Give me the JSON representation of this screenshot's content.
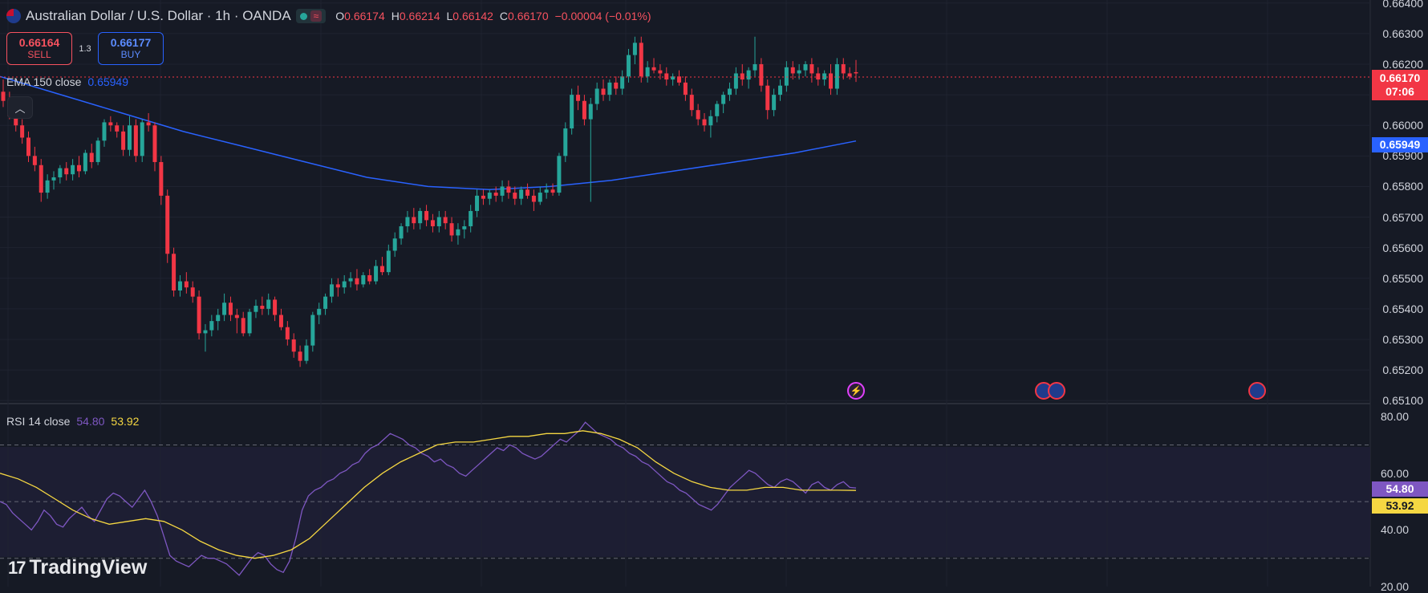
{
  "header": {
    "symbol_title": "Australian Dollar / U.S. Dollar · 1h · OANDA",
    "status_icon": "market-open-dot",
    "wave_icon": "≈",
    "ohlc": [
      {
        "key": "O",
        "value": "0.66174"
      },
      {
        "key": "H",
        "value": "0.66214"
      },
      {
        "key": "L",
        "value": "0.66142"
      },
      {
        "key": "C",
        "value": "0.66170"
      }
    ],
    "change": "−0.00004 (−0.01%)"
  },
  "trade": {
    "sell_price": "0.66164",
    "sell_label": "SELL",
    "spread": "1.3",
    "buy_price": "0.66177",
    "buy_label": "BUY"
  },
  "indicators": {
    "ema_label": "EMA 150 close",
    "ema_value": "0.65949",
    "rsi_label": "RSI 14 close",
    "rsi_value": "54.80",
    "rsi_ma_value": "53.92"
  },
  "price_axis": {
    "ticks": [
      "0.66400",
      "0.66300",
      "0.66200",
      "0.66100",
      "0.66000",
      "0.65900",
      "0.65800",
      "0.65700",
      "0.65600",
      "0.65500",
      "0.65400",
      "0.65300",
      "0.65200",
      "0.65100"
    ],
    "last_price": "0.66170",
    "countdown": "07:06",
    "ema_tag": "0.65949"
  },
  "rsi_axis": {
    "ticks": [
      "80.00",
      "60.00",
      "40.00",
      "20.00"
    ],
    "rsi_tag": "54.80",
    "ma_tag": "53.92"
  },
  "colors": {
    "bull": "#26a69a",
    "bear": "#f23645",
    "ema": "#2962ff",
    "rsi": "#7e57c2",
    "rsi_ma": "#f5d742",
    "background": "#161a25"
  },
  "events": [
    {
      "icon": "lightning-event-icon",
      "glyph": "⚡"
    },
    {
      "icon": "us-flag-event-icon",
      "glyph": ""
    },
    {
      "icon": "us-flag-event-icon",
      "glyph": ""
    },
    {
      "icon": "au-flag-event-icon",
      "glyph": ""
    }
  ],
  "brand": {
    "logo_mark": "17",
    "logo_text": "TradingView"
  },
  "chart_data": [
    {
      "type": "candlestick",
      "title": "Australian Dollar / U.S. Dollar · 1h · OANDA",
      "ylim": [
        0.6509,
        0.6641
      ],
      "candles": [
        [
          0.6611,
          0.6615,
          0.6606,
          0.6608
        ],
        [
          0.6608,
          0.6611,
          0.6602,
          0.6603
        ],
        [
          0.6603,
          0.6607,
          0.6598,
          0.66
        ],
        [
          0.66,
          0.6602,
          0.6594,
          0.6596
        ],
        [
          0.6596,
          0.6598,
          0.6588,
          0.659
        ],
        [
          0.659,
          0.6593,
          0.6585,
          0.6587
        ],
        [
          0.6587,
          0.6589,
          0.6575,
          0.6578
        ],
        [
          0.6578,
          0.6584,
          0.6576,
          0.6582
        ],
        [
          0.6582,
          0.6585,
          0.6579,
          0.6583
        ],
        [
          0.6583,
          0.6587,
          0.6581,
          0.6586
        ],
        [
          0.6586,
          0.6588,
          0.6582,
          0.6584
        ],
        [
          0.6584,
          0.6589,
          0.6582,
          0.6587
        ],
        [
          0.6587,
          0.659,
          0.6583,
          0.6585
        ],
        [
          0.6585,
          0.6592,
          0.6584,
          0.6591
        ],
        [
          0.6591,
          0.6594,
          0.6586,
          0.6588
        ],
        [
          0.6588,
          0.6596,
          0.6587,
          0.6595
        ],
        [
          0.6595,
          0.6602,
          0.6593,
          0.6601
        ],
        [
          0.6601,
          0.6603,
          0.6598,
          0.66
        ],
        [
          0.66,
          0.6601,
          0.6596,
          0.6598
        ],
        [
          0.6598,
          0.66,
          0.659,
          0.6592
        ],
        [
          0.6592,
          0.6603,
          0.659,
          0.66
        ],
        [
          0.66,
          0.6602,
          0.6588,
          0.659
        ],
        [
          0.659,
          0.6602,
          0.6588,
          0.6601
        ],
        [
          0.6601,
          0.6604,
          0.6598,
          0.66
        ],
        [
          0.66,
          0.6601,
          0.6585,
          0.6588
        ],
        [
          0.6588,
          0.659,
          0.6574,
          0.6577
        ],
        [
          0.6577,
          0.6579,
          0.6555,
          0.6558
        ],
        [
          0.6558,
          0.656,
          0.6544,
          0.6546
        ],
        [
          0.6546,
          0.6551,
          0.6544,
          0.6549
        ],
        [
          0.6549,
          0.6552,
          0.6545,
          0.6547
        ],
        [
          0.6547,
          0.6549,
          0.6542,
          0.6544
        ],
        [
          0.6544,
          0.6546,
          0.653,
          0.6532
        ],
        [
          0.6532,
          0.6535,
          0.6526,
          0.6533
        ],
        [
          0.6533,
          0.6538,
          0.6531,
          0.6536
        ],
        [
          0.6536,
          0.654,
          0.6533,
          0.6538
        ],
        [
          0.6538,
          0.6545,
          0.6536,
          0.6542
        ],
        [
          0.6542,
          0.6544,
          0.6536,
          0.6538
        ],
        [
          0.6538,
          0.654,
          0.6532,
          0.6537
        ],
        [
          0.6537,
          0.6539,
          0.6531,
          0.6532
        ],
        [
          0.6532,
          0.654,
          0.6531,
          0.6539
        ],
        [
          0.6539,
          0.6543,
          0.6537,
          0.6541
        ],
        [
          0.6541,
          0.6544,
          0.6538,
          0.654
        ],
        [
          0.654,
          0.6545,
          0.6538,
          0.6543
        ],
        [
          0.6543,
          0.6544,
          0.6536,
          0.6538
        ],
        [
          0.6538,
          0.654,
          0.6533,
          0.6534
        ],
        [
          0.6534,
          0.6536,
          0.6528,
          0.653
        ],
        [
          0.653,
          0.6532,
          0.6524,
          0.6526
        ],
        [
          0.6526,
          0.6528,
          0.6521,
          0.6523
        ],
        [
          0.6523,
          0.653,
          0.6522,
          0.6528
        ],
        [
          0.6528,
          0.6539,
          0.6526,
          0.6538
        ],
        [
          0.6538,
          0.6542,
          0.6535,
          0.654
        ],
        [
          0.654,
          0.6545,
          0.6538,
          0.6544
        ],
        [
          0.6544,
          0.655,
          0.6542,
          0.6548
        ],
        [
          0.6548,
          0.655,
          0.6544,
          0.6547
        ],
        [
          0.6547,
          0.6551,
          0.6545,
          0.6549
        ],
        [
          0.6549,
          0.6552,
          0.6547,
          0.655
        ],
        [
          0.655,
          0.6553,
          0.6546,
          0.6548
        ],
        [
          0.6548,
          0.6552,
          0.6547,
          0.6551
        ],
        [
          0.6551,
          0.6553,
          0.6548,
          0.6549
        ],
        [
          0.6549,
          0.6556,
          0.6548,
          0.6554
        ],
        [
          0.6554,
          0.6557,
          0.6551,
          0.6552
        ],
        [
          0.6552,
          0.6561,
          0.6551,
          0.6559
        ],
        [
          0.6559,
          0.6565,
          0.6557,
          0.6563
        ],
        [
          0.6563,
          0.6568,
          0.6561,
          0.6567
        ],
        [
          0.6567,
          0.6572,
          0.6565,
          0.657
        ],
        [
          0.657,
          0.6573,
          0.6566,
          0.6568
        ],
        [
          0.6568,
          0.6573,
          0.6566,
          0.6572
        ],
        [
          0.6572,
          0.6574,
          0.6567,
          0.6569
        ],
        [
          0.6569,
          0.6571,
          0.6565,
          0.6567
        ],
        [
          0.6567,
          0.6572,
          0.6565,
          0.657
        ],
        [
          0.657,
          0.6572,
          0.6566,
          0.6568
        ],
        [
          0.6568,
          0.657,
          0.6562,
          0.6564
        ],
        [
          0.6564,
          0.6568,
          0.6561,
          0.6566
        ],
        [
          0.6566,
          0.6569,
          0.6563,
          0.6567
        ],
        [
          0.6567,
          0.6574,
          0.6565,
          0.6572
        ],
        [
          0.6572,
          0.6579,
          0.657,
          0.6577
        ],
        [
          0.6577,
          0.6579,
          0.6574,
          0.6576
        ],
        [
          0.6576,
          0.6579,
          0.6574,
          0.6578
        ],
        [
          0.6578,
          0.658,
          0.6575,
          0.6577
        ],
        [
          0.6577,
          0.6582,
          0.6575,
          0.658
        ],
        [
          0.658,
          0.6582,
          0.6576,
          0.6578
        ],
        [
          0.6578,
          0.658,
          0.6574,
          0.6576
        ],
        [
          0.6576,
          0.658,
          0.6574,
          0.6579
        ],
        [
          0.6579,
          0.6581,
          0.6576,
          0.6577
        ],
        [
          0.6577,
          0.6579,
          0.6572,
          0.6575
        ],
        [
          0.6575,
          0.658,
          0.6574,
          0.6578
        ],
        [
          0.6578,
          0.6581,
          0.6576,
          0.6579
        ],
        [
          0.6579,
          0.6581,
          0.6577,
          0.6578
        ],
        [
          0.6578,
          0.6591,
          0.6577,
          0.659
        ],
        [
          0.659,
          0.6601,
          0.6588,
          0.6599
        ],
        [
          0.6599,
          0.6612,
          0.6597,
          0.661
        ],
        [
          0.661,
          0.6613,
          0.6605,
          0.6608
        ],
        [
          0.6608,
          0.661,
          0.66,
          0.6602
        ],
        [
          0.6602,
          0.6609,
          0.6575,
          0.6607
        ],
        [
          0.6607,
          0.6614,
          0.6605,
          0.6612
        ],
        [
          0.6612,
          0.6615,
          0.6608,
          0.661
        ],
        [
          0.661,
          0.6615,
          0.6608,
          0.6614
        ],
        [
          0.6614,
          0.6616,
          0.661,
          0.6612
        ],
        [
          0.6612,
          0.6618,
          0.661,
          0.6616
        ],
        [
          0.6616,
          0.6625,
          0.6614,
          0.6623
        ],
        [
          0.6623,
          0.6629,
          0.662,
          0.6627
        ],
        [
          0.6627,
          0.6629,
          0.6614,
          0.6616
        ],
        [
          0.6616,
          0.6621,
          0.6614,
          0.6619
        ],
        [
          0.6619,
          0.6622,
          0.6617,
          0.6618
        ],
        [
          0.6618,
          0.662,
          0.6615,
          0.6617
        ],
        [
          0.6617,
          0.6619,
          0.6613,
          0.6615
        ],
        [
          0.6615,
          0.6617,
          0.6613,
          0.6616
        ],
        [
          0.6616,
          0.6618,
          0.6613,
          0.6614
        ],
        [
          0.6614,
          0.6616,
          0.6608,
          0.661
        ],
        [
          0.661,
          0.6612,
          0.6603,
          0.6605
        ],
        [
          0.6605,
          0.6607,
          0.66,
          0.6602
        ],
        [
          0.6602,
          0.6604,
          0.6598,
          0.66
        ],
        [
          0.66,
          0.6605,
          0.6596,
          0.6603
        ],
        [
          0.6603,
          0.6608,
          0.6601,
          0.6607
        ],
        [
          0.6607,
          0.6611,
          0.6604,
          0.661
        ],
        [
          0.661,
          0.6614,
          0.6608,
          0.6612
        ],
        [
          0.6612,
          0.6619,
          0.661,
          0.6617
        ],
        [
          0.6617,
          0.662,
          0.6613,
          0.6615
        ],
        [
          0.6615,
          0.6619,
          0.6612,
          0.6618
        ],
        [
          0.6618,
          0.6629,
          0.6616,
          0.662
        ],
        [
          0.662,
          0.6622,
          0.6611,
          0.6613
        ],
        [
          0.6613,
          0.6615,
          0.6602,
          0.6605
        ],
        [
          0.6605,
          0.6612,
          0.6603,
          0.661
        ],
        [
          0.661,
          0.6615,
          0.6608,
          0.6613
        ],
        [
          0.6613,
          0.6621,
          0.6611,
          0.6619
        ],
        [
          0.6619,
          0.6621,
          0.6615,
          0.6617
        ],
        [
          0.6617,
          0.662,
          0.6615,
          0.6618
        ],
        [
          0.6618,
          0.6621,
          0.6616,
          0.662
        ],
        [
          0.662,
          0.6622,
          0.6614,
          0.6617
        ],
        [
          0.6617,
          0.6619,
          0.6613,
          0.6615
        ],
        [
          0.6615,
          0.6618,
          0.6613,
          0.6617
        ],
        [
          0.6617,
          0.662,
          0.661,
          0.6612
        ],
        [
          0.6612,
          0.6622,
          0.661,
          0.662
        ],
        [
          0.662,
          0.6622,
          0.6615,
          0.6617
        ],
        [
          0.6617,
          0.6619,
          0.6615,
          0.6616
        ],
        [
          0.66174,
          0.66214,
          0.66142,
          0.6617
        ]
      ],
      "ema": {
        "name": "EMA 150 close",
        "values": [
          0.6616,
          0.661,
          0.6604,
          0.6598,
          0.6593,
          0.6588,
          0.6583,
          0.658,
          0.6579,
          0.658,
          0.6582,
          0.6585,
          0.6588,
          0.6591,
          0.65949
        ]
      }
    },
    {
      "type": "line",
      "title": "RSI 14 close",
      "ylim": [
        20,
        84
      ],
      "levels": [
        70,
        50,
        30
      ],
      "series": [
        {
          "name": "RSI",
          "values": [
            50,
            49,
            46,
            44,
            42,
            40,
            43,
            47,
            45,
            42,
            41,
            44,
            46,
            48,
            45,
            43,
            47,
            51,
            53,
            52,
            50,
            48,
            51,
            54,
            50,
            45,
            38,
            31,
            29,
            28,
            27,
            29,
            31,
            30,
            30,
            29,
            28,
            26,
            24,
            27,
            30,
            32,
            31,
            28,
            26,
            25,
            29,
            37,
            47,
            52,
            54,
            55,
            57,
            58,
            60,
            61,
            63,
            64,
            67,
            69,
            70,
            72,
            74,
            73,
            72,
            70,
            69,
            67,
            66,
            64,
            65,
            63,
            62,
            60,
            59,
            61,
            63,
            65,
            67,
            69,
            68,
            70,
            69,
            67,
            66,
            65,
            66,
            68,
            70,
            72,
            71,
            73,
            75,
            78,
            76,
            74,
            73,
            72,
            70,
            69,
            67,
            66,
            64,
            63,
            61,
            59,
            57,
            56,
            54,
            53,
            51,
            49,
            48,
            47,
            49,
            52,
            55,
            57,
            59,
            61,
            60,
            58,
            56,
            55,
            57,
            58,
            57,
            55,
            53,
            56,
            57,
            55,
            54,
            56,
            57,
            55,
            54.8
          ]
        },
        {
          "name": "MA",
          "values": [
            60,
            58,
            55,
            51,
            47,
            44,
            42,
            43,
            44,
            43,
            40,
            36,
            33,
            31,
            30,
            31,
            33,
            37,
            43,
            49,
            55,
            60,
            64,
            67,
            70,
            71,
            71,
            72,
            73,
            73,
            74,
            74,
            75,
            74,
            72,
            69,
            64,
            60,
            57,
            55,
            54,
            54,
            55,
            55,
            54,
            54,
            54,
            53.92
          ]
        }
      ]
    }
  ]
}
